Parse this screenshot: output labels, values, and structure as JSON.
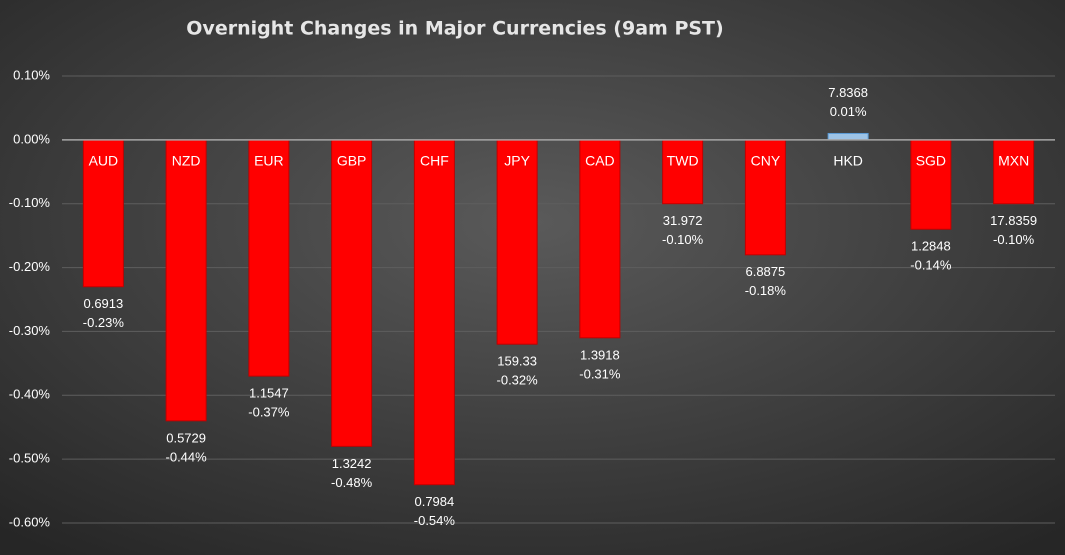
{
  "chart_data": {
    "type": "bar",
    "title": "Overnight Changes in Major Currencies (9am PST)",
    "categories": [
      "AUD",
      "NZD",
      "EUR",
      "GBP",
      "CHF",
      "JPY",
      "CAD",
      "TWD",
      "CNY",
      "HKD",
      "SGD",
      "MXN"
    ],
    "values": [
      -0.23,
      -0.44,
      -0.37,
      -0.48,
      -0.54,
      -0.32,
      -0.31,
      -0.1,
      -0.18,
      0.01,
      -0.14,
      -0.1
    ],
    "value_labels": [
      "-0.23%",
      "-0.44%",
      "-0.37%",
      "-0.48%",
      "-0.54%",
      "-0.32%",
      "-0.31%",
      "-0.10%",
      "-0.18%",
      "0.01%",
      "-0.14%",
      "-0.10%"
    ],
    "rates": [
      "0.6913",
      "0.5729",
      "1.1547",
      "1.3242",
      "0.7984",
      "159.33",
      "1.3918",
      "31.972",
      "6.8875",
      "7.8368",
      "1.2848",
      "17.8359"
    ],
    "colors": [
      "#ff0000",
      "#ff0000",
      "#ff0000",
      "#ff0000",
      "#ff0000",
      "#ff0000",
      "#ff0000",
      "#ff0000",
      "#ff0000",
      "#9dc3e6",
      "#ff0000",
      "#ff0000"
    ],
    "ylim": [
      -0.6,
      0.1
    ],
    "yticks": [
      {
        "value": -0.6,
        "label": "-0.60%"
      },
      {
        "value": -0.5,
        "label": "-0.50%"
      },
      {
        "value": -0.4,
        "label": "-0.40%"
      },
      {
        "value": -0.3,
        "label": "-0.30%"
      },
      {
        "value": -0.2,
        "label": "-0.20%"
      },
      {
        "value": -0.1,
        "label": "-0.10%"
      },
      {
        "value": 0,
        "label": "0.00%"
      },
      {
        "value": 0.1,
        "label": "0.10%"
      }
    ],
    "grid": true
  }
}
